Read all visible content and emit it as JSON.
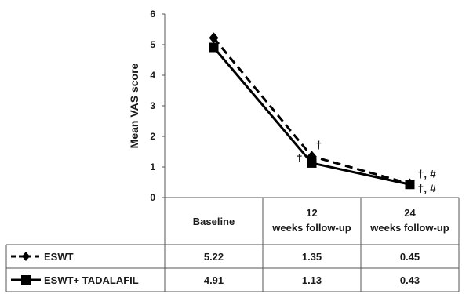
{
  "chart_data": {
    "type": "line",
    "title": "",
    "xlabel": "",
    "ylabel": "Mean VAS score",
    "ylim": [
      0,
      6
    ],
    "yticks": [
      "0",
      "1",
      "2",
      "3",
      "4",
      "5",
      "6"
    ],
    "grid": false,
    "legend": "table-below",
    "categories": [
      "Baseline",
      "12 weeks follow-up",
      "24 weeks follow-up"
    ],
    "series": [
      {
        "name": "ESWT",
        "values": [
          5.22,
          1.35,
          0.45
        ],
        "value_labels": [
          "5.22",
          "1.35",
          "0.45"
        ],
        "style": "dashed",
        "marker": "diamond",
        "color": "#000000"
      },
      {
        "name": "ESWT+ TADALAFIL",
        "values": [
          4.91,
          1.13,
          0.43
        ],
        "value_labels": [
          "4.91",
          "1.13",
          "0.43"
        ],
        "style": "solid",
        "marker": "square",
        "color": "#000000"
      }
    ],
    "annotations": [
      {
        "text": "†",
        "category": 1,
        "series": 0
      },
      {
        "text": "†",
        "category": 1,
        "series": 1
      },
      {
        "text": "†, #",
        "category": 2,
        "series": 0
      },
      {
        "text": "†, #",
        "category": 2,
        "series": 1
      }
    ]
  }
}
